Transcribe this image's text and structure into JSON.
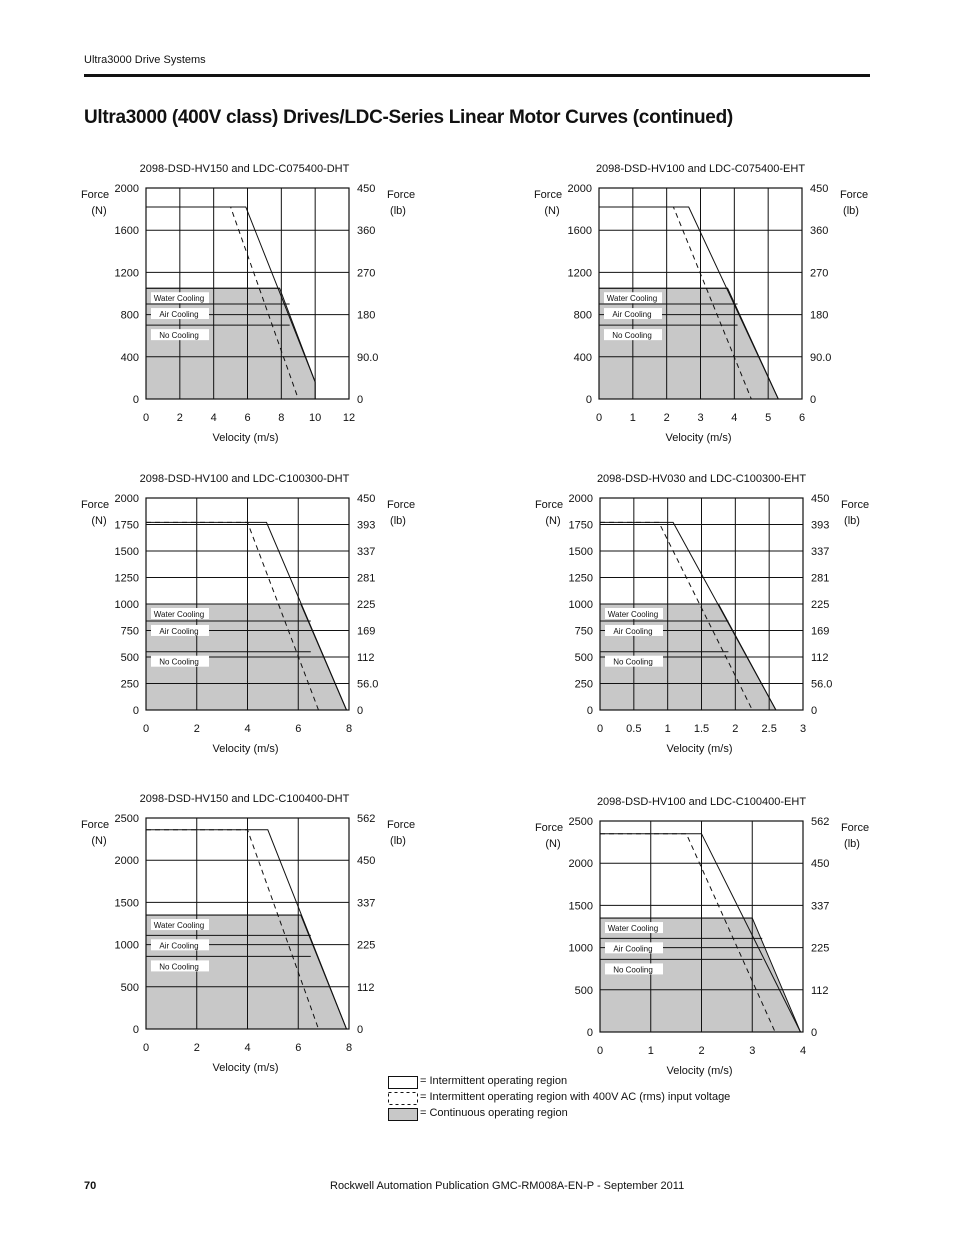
{
  "header": {
    "section": "Ultra3000 Drive Systems"
  },
  "title": "Ultra3000 (400V class) Drives/LDC-Series Linear Motor Curves (continued)",
  "footer": {
    "page": "70",
    "publication": "Rockwell Automation Publication GMC-RM008A-EN-P - September 2011"
  },
  "legend": {
    "intermittent": "= Intermittent operating region",
    "intermittent_400v": "= Intermittent operating region with 400V AC (rms) input voltage",
    "continuous": "= Continuous operating region"
  },
  "colors": {
    "continuous_fill": "#c8c8c8",
    "line": "#111111"
  },
  "chart_data": [
    {
      "type": "area",
      "title": "2098-DSD-HV150 and LDC-C075400-DHT",
      "xlabel": "Velocity (m/s)",
      "ylabel_left": "Force (N)",
      "ylabel_right": "Force (lb)",
      "xlim": [
        0,
        12
      ],
      "ylim": [
        0,
        2000
      ],
      "x_ticks": [
        "0",
        "2",
        "4",
        "6",
        "8",
        "10",
        "12"
      ],
      "y_ticks_left": [
        "0",
        "400",
        "800",
        "1200",
        "1600",
        "2000"
      ],
      "y_ticks_right": [
        "0",
        "90.0",
        "180",
        "270",
        "360",
        "450"
      ],
      "cooling_labels": [
        "Water Cooling",
        "Air Cooling",
        "No Cooling"
      ],
      "cooling_levels": [
        1050,
        900,
        700
      ],
      "intermittent": [
        [
          0,
          1820
        ],
        [
          5.9,
          1820
        ],
        [
          10,
          160
        ]
      ],
      "intermittent_400v": [
        [
          0,
          1820
        ],
        [
          5,
          1820
        ],
        [
          9,
          0
        ]
      ],
      "continuous": [
        [
          0,
          1050
        ],
        [
          7.9,
          1050
        ],
        [
          10,
          160
        ],
        [
          10,
          0
        ]
      ]
    },
    {
      "type": "area",
      "title": "2098-DSD-HV100 and LDC-C075400-EHT",
      "xlabel": "Velocity (m/s)",
      "ylabel_left": "Force (N)",
      "ylabel_right": "Force (lb)",
      "xlim": [
        0,
        6
      ],
      "ylim": [
        0,
        2000
      ],
      "x_ticks": [
        "0",
        "1",
        "2",
        "3",
        "4",
        "5",
        "6"
      ],
      "y_ticks_left": [
        "0",
        "400",
        "800",
        "1200",
        "1600",
        "2000"
      ],
      "y_ticks_right": [
        "0",
        "90.0",
        "180",
        "270",
        "360",
        "450"
      ],
      "cooling_labels": [
        "Water Cooling",
        "Air Cooling",
        "No Cooling"
      ],
      "cooling_levels": [
        1050,
        900,
        700
      ],
      "intermittent": [
        [
          0,
          1820
        ],
        [
          2.65,
          1820
        ],
        [
          5.3,
          0
        ]
      ],
      "intermittent_400v": [
        [
          0,
          1820
        ],
        [
          2.2,
          1820
        ],
        [
          4.5,
          0
        ]
      ],
      "continuous": [
        [
          0,
          1050
        ],
        [
          3.8,
          1050
        ],
        [
          5.3,
          0
        ]
      ]
    },
    {
      "type": "area",
      "title": "2098-DSD-HV100 and LDC-C100300-DHT",
      "xlabel": "Velocity (m/s)",
      "ylabel_left": "Force (N)",
      "ylabel_right": "Force (lb)",
      "xlim": [
        0,
        8
      ],
      "ylim": [
        0,
        2000
      ],
      "x_ticks": [
        "0",
        "2",
        "4",
        "6",
        "8"
      ],
      "y_ticks_left": [
        "0",
        "250",
        "500",
        "750",
        "1000",
        "1250",
        "1500",
        "1750",
        "2000"
      ],
      "y_ticks_right": [
        "0",
        "56.0",
        "112",
        "169",
        "225",
        "281",
        "337",
        "393",
        "450"
      ],
      "cooling_labels": [
        "Water Cooling",
        "Air Cooling",
        "No Cooling"
      ],
      "cooling_levels": [
        1000,
        840,
        550
      ],
      "intermittent": [
        [
          0,
          1770
        ],
        [
          4.75,
          1770
        ],
        [
          7.9,
          0
        ]
      ],
      "intermittent_400v": [
        [
          0,
          1770
        ],
        [
          4,
          1770
        ],
        [
          6.8,
          0
        ]
      ],
      "continuous": [
        [
          0,
          1000
        ],
        [
          6.1,
          1000
        ],
        [
          7.9,
          0
        ]
      ]
    },
    {
      "type": "area",
      "title": "2098-DSD-HV030 and LDC-C100300-EHT",
      "xlabel": "Velocity (m/s)",
      "ylabel_left": "Force (N)",
      "ylabel_right": "Force (lb)",
      "xlim": [
        0,
        3
      ],
      "ylim": [
        0,
        2000
      ],
      "x_ticks": [
        "0",
        "0.5",
        "1",
        "1.5",
        "2",
        "2.5",
        "3"
      ],
      "y_ticks_left": [
        "0",
        "250",
        "500",
        "750",
        "1000",
        "1250",
        "1500",
        "1750",
        "2000"
      ],
      "y_ticks_right": [
        "0",
        "56.0",
        "112",
        "169",
        "225",
        "281",
        "337",
        "393",
        "450"
      ],
      "cooling_labels": [
        "Water Cooling",
        "Air Cooling",
        "No Cooling"
      ],
      "cooling_levels": [
        1000,
        840,
        550
      ],
      "intermittent": [
        [
          0,
          1770
        ],
        [
          1.08,
          1770
        ],
        [
          2.6,
          0
        ]
      ],
      "intermittent_400v": [
        [
          0,
          1770
        ],
        [
          0.87,
          1770
        ],
        [
          2.25,
          0
        ]
      ],
      "continuous": [
        [
          0,
          1000
        ],
        [
          1.75,
          1000
        ],
        [
          2.6,
          0
        ]
      ]
    },
    {
      "type": "area",
      "title": "2098-DSD-HV150 and LDC-C100400-DHT",
      "xlabel": "Velocity (m/s)",
      "ylabel_left": "Force (N)",
      "ylabel_right": "Force (lb)",
      "xlim": [
        0,
        8
      ],
      "ylim": [
        0,
        2500
      ],
      "x_ticks": [
        "0",
        "2",
        "4",
        "6",
        "8"
      ],
      "y_ticks_left": [
        "0",
        "500",
        "1000",
        "1500",
        "2000",
        "2500"
      ],
      "y_ticks_right": [
        "0",
        "112",
        "225",
        "337",
        "450",
        "562"
      ],
      "cooling_labels": [
        "Water Cooling",
        "Air Cooling",
        "No Cooling"
      ],
      "cooling_levels": [
        1350,
        1110,
        860
      ],
      "intermittent": [
        [
          0,
          2360
        ],
        [
          4.8,
          2360
        ],
        [
          7.9,
          0
        ]
      ],
      "intermittent_400v": [
        [
          0,
          2360
        ],
        [
          4,
          2360
        ],
        [
          6.8,
          0
        ]
      ],
      "continuous": [
        [
          0,
          1350
        ],
        [
          6.1,
          1350
        ],
        [
          7.9,
          0
        ]
      ]
    },
    {
      "type": "area",
      "title": "2098-DSD-HV100 and LDC-C100400-EHT",
      "xlabel": "Velocity (m/s)",
      "ylabel_left": "Force (N)",
      "ylabel_right": "Force (lb)",
      "xlim": [
        0,
        4
      ],
      "ylim": [
        0,
        2500
      ],
      "x_ticks": [
        "0",
        "1",
        "2",
        "3",
        "4"
      ],
      "y_ticks_left": [
        "0",
        "500",
        "1000",
        "1500",
        "2000",
        "2500"
      ],
      "y_ticks_right": [
        "0",
        "112",
        "225",
        "337",
        "450",
        "562"
      ],
      "cooling_labels": [
        "Water Cooling",
        "Air Cooling",
        "No Cooling"
      ],
      "cooling_levels": [
        1350,
        1110,
        860
      ],
      "intermittent": [
        [
          0,
          2350
        ],
        [
          2,
          2350
        ],
        [
          3.95,
          0
        ]
      ],
      "intermittent_400v": [
        [
          0,
          2350
        ],
        [
          1.7,
          2350
        ],
        [
          3.45,
          0
        ]
      ],
      "continuous": [
        [
          0,
          1350
        ],
        [
          3,
          1350
        ],
        [
          3.95,
          0
        ]
      ]
    }
  ]
}
